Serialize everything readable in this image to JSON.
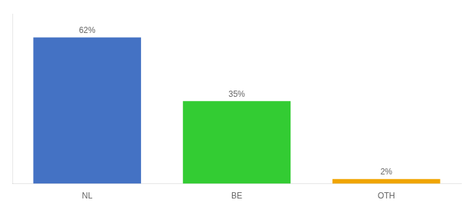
{
  "chart_data": {
    "type": "bar",
    "categories": [
      "NL",
      "BE",
      "OTH"
    ],
    "values": [
      62,
      35,
      2
    ],
    "value_labels": [
      "62%",
      "35%",
      "2%"
    ],
    "colors": [
      "#4472c4",
      "#33cc33",
      "#f0a500"
    ],
    "ylim": [
      0,
      72
    ],
    "grid": false,
    "tick_labels": "x",
    "data_labels": true
  }
}
